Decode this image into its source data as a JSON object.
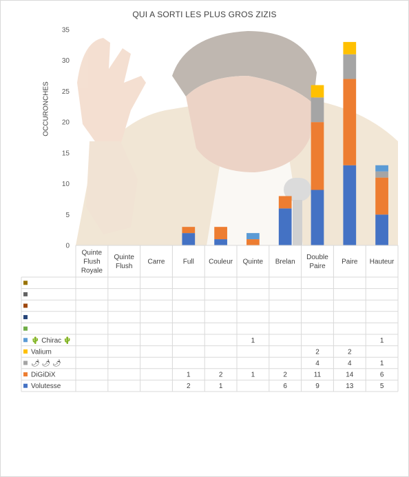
{
  "chart_data": {
    "type": "bar",
    "stacked": true,
    "title": "QUI A SORTI LES PLUS GROS ZIZIS",
    "ylabel": "OCCURONCHES",
    "xlabel": "",
    "ylim": [
      0,
      35
    ],
    "yticks": [
      0,
      5,
      10,
      15,
      20,
      25,
      30,
      35
    ],
    "grid": false,
    "legend": "data-table-rows",
    "categories": [
      "Quinte Flush Royale",
      "Quinte Flush",
      "Carre",
      "Full",
      "Couleur",
      "Quinte",
      "Brelan",
      "Double Paire",
      "Paire",
      "Hauteur"
    ],
    "category_lines": [
      [
        "Quinte",
        "Flush",
        "Royale"
      ],
      [
        "Quinte",
        "Flush"
      ],
      [
        "Carre"
      ],
      [
        "Full"
      ],
      [
        "Couleur"
      ],
      [
        "Quinte"
      ],
      [
        "Brelan"
      ],
      [
        "Double",
        "Paire"
      ],
      [
        "Paire"
      ],
      [
        "Hauteur"
      ]
    ],
    "series": [
      {
        "name": "Volutesse",
        "color": "#4472c4",
        "values": [
          null,
          null,
          null,
          2,
          1,
          null,
          6,
          9,
          13,
          5
        ]
      },
      {
        "name": "DiGiDiX",
        "color": "#ed7d31",
        "values": [
          null,
          null,
          null,
          1,
          2,
          1,
          2,
          11,
          14,
          6
        ]
      },
      {
        "name": "🌶 🌶 🌶",
        "color": "#a5a5a5",
        "values": [
          null,
          null,
          null,
          null,
          null,
          null,
          null,
          4,
          4,
          1
        ]
      },
      {
        "name": "Valium",
        "color": "#ffc000",
        "values": [
          null,
          null,
          null,
          null,
          null,
          null,
          null,
          2,
          2,
          null
        ]
      },
      {
        "name": "🌵 Chirac 🌵",
        "color": "#5b9bd5",
        "values": [
          null,
          null,
          null,
          null,
          null,
          1,
          null,
          null,
          null,
          1
        ]
      },
      {
        "name": "",
        "color": "#70ad47",
        "values": [
          null,
          null,
          null,
          null,
          null,
          null,
          null,
          null,
          null,
          null
        ]
      },
      {
        "name": "",
        "color": "#264478",
        "values": [
          null,
          null,
          null,
          null,
          null,
          null,
          null,
          null,
          null,
          null
        ]
      },
      {
        "name": "",
        "color": "#9e480e",
        "values": [
          null,
          null,
          null,
          null,
          null,
          null,
          null,
          null,
          null,
          null
        ]
      },
      {
        "name": "",
        "color": "#636363",
        "values": [
          null,
          null,
          null,
          null,
          null,
          null,
          null,
          null,
          null,
          null
        ]
      },
      {
        "name": "",
        "color": "#997300",
        "values": [
          null,
          null,
          null,
          null,
          null,
          null,
          null,
          null,
          null,
          null
        ]
      }
    ]
  }
}
